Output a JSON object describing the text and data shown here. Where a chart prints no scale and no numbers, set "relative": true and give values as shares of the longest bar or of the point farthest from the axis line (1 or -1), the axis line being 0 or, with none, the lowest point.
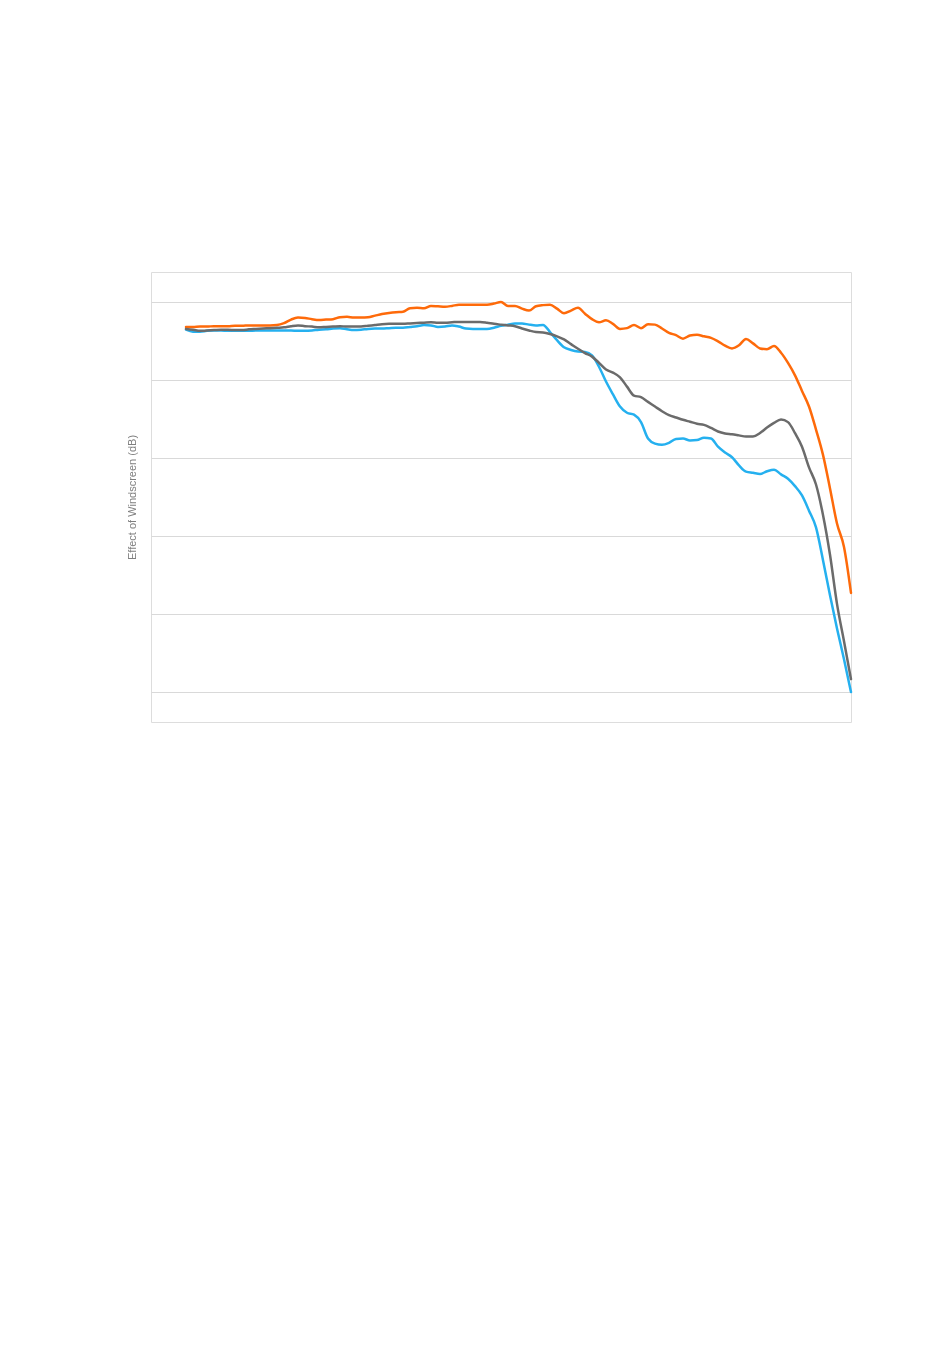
{
  "chart_data": {
    "type": "line",
    "ylabel": "Effect of Windscreen (dB)",
    "relative": true,
    "grid": "y",
    "categories": [
      null,
      null,
      null,
      null,
      null,
      null,
      null,
      null,
      null,
      null,
      null,
      null,
      null,
      null,
      null,
      null,
      null,
      null,
      null,
      null,
      null,
      null,
      null,
      null,
      null,
      null,
      null,
      null,
      null,
      null,
      null,
      null,
      null,
      null,
      null,
      null,
      null,
      null,
      null,
      null,
      null,
      null,
      null,
      null,
      null,
      null,
      null,
      null,
      null,
      null,
      null,
      null,
      null,
      null,
      null,
      null,
      null,
      null,
      null,
      null,
      null,
      null,
      null,
      null,
      null,
      null,
      null,
      null,
      null,
      null,
      null,
      null,
      null,
      null,
      null,
      null,
      null,
      null,
      null,
      null,
      null,
      null,
      null,
      null,
      null,
      null,
      null,
      null,
      null,
      null,
      null,
      null,
      null,
      null,
      null,
      null
    ],
    "series": [
      {
        "color": "#fe6a0a",
        "values": [
          0.936,
          0.936,
          0.937,
          0.937,
          0.938,
          0.938,
          0.938,
          0.939,
          0.939,
          0.94,
          0.94,
          0.94,
          0.94,
          0.941,
          0.946,
          0.955,
          0.96,
          0.959,
          0.956,
          0.954,
          0.955,
          0.956,
          0.961,
          0.962,
          0.96,
          0.96,
          0.961,
          0.965,
          0.969,
          0.972,
          0.974,
          0.975,
          0.984,
          0.985,
          0.984,
          0.99,
          0.989,
          0.988,
          0.99,
          0.993,
          0.993,
          0.993,
          0.993,
          0.993,
          0.996,
          1,
          0.99,
          0.99,
          0.983,
          0.978,
          0.989,
          0.992,
          0.993,
          0.983,
          0.971,
          0.978,
          0.985,
          0.97,
          0.956,
          0.948,
          0.953,
          0.944,
          0.931,
          0.933,
          0.941,
          0.933,
          0.943,
          0.942,
          0.932,
          0.921,
          0.915,
          0.906,
          0.914,
          0.916,
          0.912,
          0.908,
          0.899,
          0.888,
          0.881,
          0.889,
          0.905,
          0.894,
          0.881,
          0.879,
          0.887,
          0.87,
          0.844,
          0.812,
          0.772,
          0.732,
          0.673,
          0.608,
          0.522,
          0.432,
          0.372,
          0.254
        ]
      },
      {
        "color": "#25b0ef",
        "values": [
          0.929,
          0.924,
          0.924,
          0.926,
          0.927,
          0.927,
          0.926,
          0.926,
          0.926,
          0.926,
          0.927,
          0.927,
          0.927,
          0.927,
          0.927,
          0.927,
          0.926,
          0.926,
          0.927,
          0.929,
          0.93,
          0.932,
          0.933,
          0.93,
          0.928,
          0.929,
          0.931,
          0.932,
          0.932,
          0.933,
          0.934,
          0.934,
          0.936,
          0.938,
          0.941,
          0.94,
          0.936,
          0.937,
          0.94,
          0.937,
          0.932,
          0.931,
          0.931,
          0.931,
          0.934,
          0.939,
          0.942,
          0.945,
          0.945,
          0.942,
          0.94,
          0.941,
          0.923,
          0.902,
          0.884,
          0.877,
          0.873,
          0.872,
          0.863,
          0.834,
          0.796,
          0.763,
          0.732,
          0.716,
          0.711,
          0.692,
          0.65,
          0.637,
          0.634,
          0.639,
          0.649,
          0.65,
          0.645,
          0.646,
          0.652,
          0.65,
          0.629,
          0.614,
          0.602,
          0.581,
          0.565,
          0.562,
          0.559,
          0.566,
          0.57,
          0.558,
          0.547,
          0.528,
          0.504,
          0.465,
          0.422,
          0.338,
          0.248,
          0.163,
          0.084,
          0
        ]
      },
      {
        "color": "#6b6b6b",
        "values": [
          0.931,
          0.929,
          0.926,
          0.927,
          0.928,
          0.929,
          0.929,
          0.928,
          0.928,
          0.93,
          0.931,
          0.932,
          0.933,
          0.934,
          0.935,
          0.938,
          0.94,
          0.938,
          0.937,
          0.935,
          0.936,
          0.937,
          0.938,
          0.937,
          0.937,
          0.937,
          0.939,
          0.941,
          0.943,
          0.944,
          0.944,
          0.944,
          0.945,
          0.946,
          0.947,
          0.948,
          0.947,
          0.947,
          0.948,
          0.949,
          0.949,
          0.949,
          0.949,
          0.947,
          0.944,
          0.942,
          0.94,
          0.938,
          0.932,
          0.927,
          0.923,
          0.922,
          0.918,
          0.912,
          0.904,
          0.892,
          0.88,
          0.869,
          0.86,
          0.844,
          0.827,
          0.819,
          0.807,
          0.783,
          0.76,
          0.756,
          0.744,
          0.732,
          0.72,
          0.71,
          0.704,
          0.698,
          0.693,
          0.688,
          0.685,
          0.677,
          0.668,
          0.663,
          0.661,
          0.658,
          0.655,
          0.655,
          0.664,
          0.678,
          0.69,
          0.699,
          0.692,
          0.664,
          0.629,
          0.576,
          0.532,
          0.454,
          0.352,
          0.226,
          0.13,
          0.033
        ]
      }
    ]
  }
}
